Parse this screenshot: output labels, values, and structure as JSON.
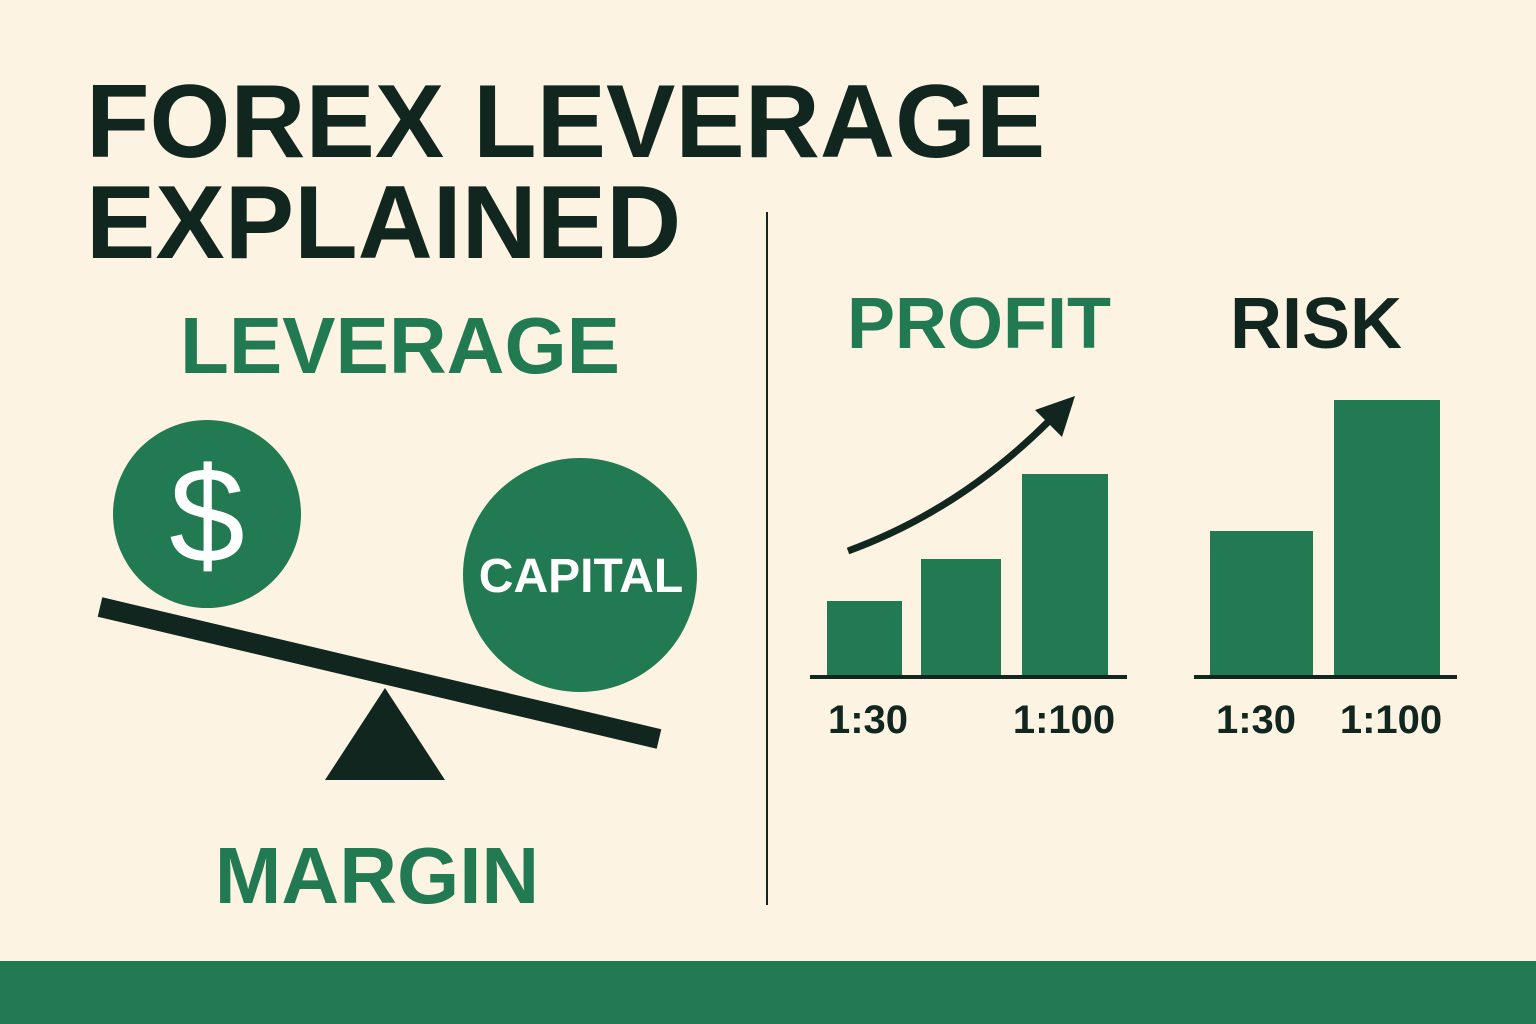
{
  "title": [
    "FOREX LEVERAGE",
    "EXPLAINED"
  ],
  "left": {
    "heading": "LEVERAGE",
    "coin_symbol": "$",
    "coin_label": "CAPITAL",
    "footer": "MARGIN"
  },
  "profit": {
    "heading": "PROFIT",
    "labels": [
      "1:30",
      "1:100"
    ]
  },
  "risk": {
    "heading": "RISK",
    "labels": [
      "1:30",
      "1:100"
    ]
  }
}
